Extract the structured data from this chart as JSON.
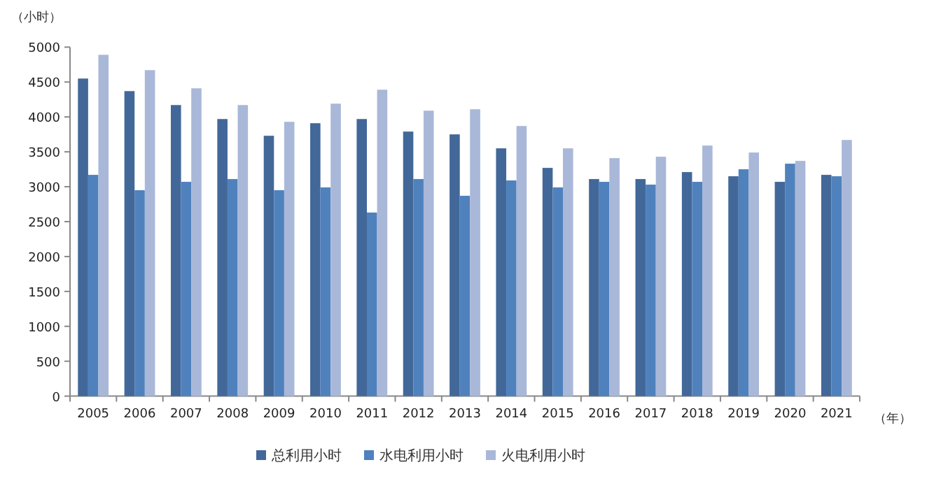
{
  "chart_data": {
    "type": "bar",
    "ylabel": "（小时）",
    "xlabel": "（年）",
    "categories": [
      "2005",
      "2006",
      "2007",
      "2008",
      "2009",
      "2010",
      "2011",
      "2012",
      "2013",
      "2014",
      "2015",
      "2016",
      "2017",
      "2018",
      "2019",
      "2020",
      "2021"
    ],
    "series": [
      {
        "name": "总利用小时",
        "color": "#426899",
        "values": [
          4550,
          4370,
          4170,
          3970,
          3730,
          3910,
          3970,
          3790,
          3750,
          3550,
          3270,
          3110,
          3110,
          3210,
          3150,
          3070,
          3170
        ]
      },
      {
        "name": "水电利用小时",
        "color": "#4f81bd",
        "values": [
          3170,
          2950,
          3070,
          3110,
          2950,
          2990,
          2630,
          3110,
          2870,
          3090,
          2990,
          3070,
          3030,
          3070,
          3250,
          3330,
          3150
        ]
      },
      {
        "name": "火电利用小时",
        "color": "#a9b8d8",
        "values": [
          4890,
          4670,
          4410,
          4170,
          3930,
          4190,
          4390,
          4090,
          4110,
          3870,
          3550,
          3410,
          3430,
          3590,
          3490,
          3370,
          3670
        ]
      }
    ],
    "ylim": [
      0,
      5000
    ],
    "yticks": [
      0,
      500,
      1000,
      1500,
      2000,
      2500,
      3000,
      3500,
      4000,
      4500,
      5000
    ],
    "grid": false,
    "legend": "bottom"
  }
}
